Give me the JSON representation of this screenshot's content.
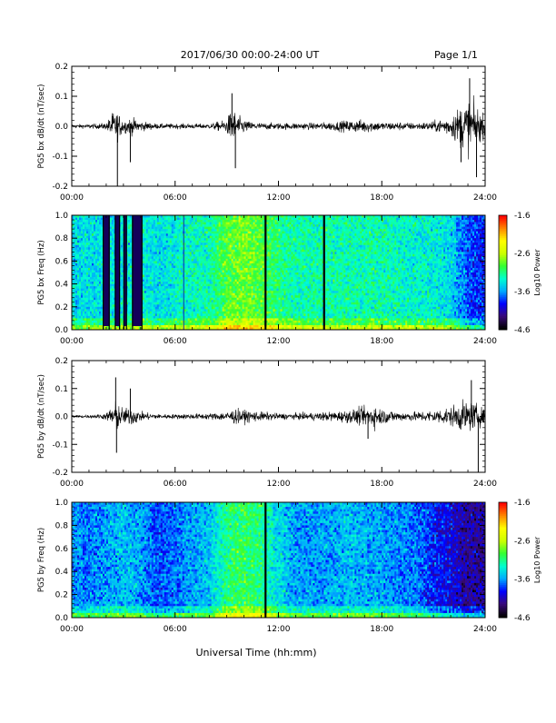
{
  "header": {
    "date_range": "2017/06/30  00:00-24:00 UT",
    "page": "Page 1/1"
  },
  "footer": {
    "xlabel": "Universal Time (hh:mm)"
  },
  "colors": {
    "trace": "#000000",
    "frame": "#000000",
    "colormap": [
      "#000000",
      "#3a0a7a",
      "#0000ff",
      "#00aaff",
      "#00ffd0",
      "#33ff33",
      "#ccff00",
      "#ffff00",
      "#ff8800",
      "#ff0000"
    ]
  },
  "chart_data": [
    {
      "type": "line",
      "ylabel": "PG5 bx dB/dt (nT/sec)",
      "x_ticks": [
        "00:00",
        "06:00",
        "12:00",
        "18:00",
        "24:00"
      ],
      "y_ticks": [
        "0.2",
        "0.1",
        "0.0",
        "-0.1",
        "-0.2"
      ],
      "xlim": [
        0,
        24
      ],
      "ylim": [
        -0.2,
        0.2
      ],
      "x_unit": "hours UT",
      "baseline": 0.0,
      "envelope_x": [
        0,
        1,
        2,
        2.4,
        2.6,
        3.0,
        3.5,
        4.0,
        5,
        6,
        8,
        9,
        9.3,
        9.7,
        10.2,
        11,
        12,
        13,
        14,
        15,
        16,
        17,
        18,
        19,
        20,
        21,
        22,
        22.5,
        23,
        23.5,
        24
      ],
      "envelope_y": [
        0.012,
        0.012,
        0.02,
        0.09,
        0.09,
        0.04,
        0.05,
        0.03,
        0.015,
        0.015,
        0.015,
        0.04,
        0.11,
        0.06,
        0.03,
        0.02,
        0.02,
        0.02,
        0.02,
        0.025,
        0.035,
        0.04,
        0.025,
        0.025,
        0.02,
        0.03,
        0.06,
        0.12,
        0.16,
        0.12,
        0.06
      ],
      "spikes": [
        {
          "x": 2.65,
          "y": -0.2
        },
        {
          "x": 3.4,
          "y": -0.12
        },
        {
          "x": 9.3,
          "y": 0.11
        },
        {
          "x": 9.5,
          "y": -0.14
        },
        {
          "x": 22.6,
          "y": -0.12
        },
        {
          "x": 23.1,
          "y": 0.16
        },
        {
          "x": 23.5,
          "y": -0.17
        }
      ]
    },
    {
      "type": "heatmap",
      "ylabel": "PG5 bx Freq (Hz)",
      "x_ticks": [
        "00:00",
        "06:00",
        "12:00",
        "18:00",
        "24:00"
      ],
      "y_ticks": [
        "1.0",
        "0.8",
        "0.6",
        "0.4",
        "0.2",
        "0.0"
      ],
      "xlim": [
        0,
        24
      ],
      "ylim": [
        0,
        1
      ],
      "colorbar": {
        "label": "Log10 Power",
        "ticks": [
          "-1.6",
          "-2.6",
          "-3.6",
          "-4.6"
        ],
        "range": [
          -4.6,
          -1.6
        ]
      },
      "level_profile_x": [
        0,
        2,
        4,
        5,
        6,
        8,
        9,
        10,
        11,
        12,
        13,
        15,
        18,
        20,
        21,
        22,
        23,
        24
      ],
      "level_profile": [
        -3.4,
        -3.4,
        -3.3,
        -3.4,
        -3.3,
        -3.2,
        -2.9,
        -2.8,
        -2.9,
        -3.1,
        -3.2,
        -3.2,
        -3.2,
        -3.3,
        -3.3,
        -3.4,
        -3.8,
        -3.9
      ],
      "data_gaps_hours": [
        [
          1.8,
          2.2
        ],
        [
          2.5,
          2.8
        ],
        [
          3.0,
          3.2
        ],
        [
          3.5,
          4.1
        ],
        [
          11.2,
          11.3
        ],
        [
          14.6,
          14.7
        ]
      ],
      "thin_gaps_hours": [
        6.5
      ]
    },
    {
      "type": "line",
      "ylabel": "PG5 by dB/dt (nT/sec)",
      "x_ticks": [
        "00:00",
        "06:00",
        "12:00",
        "18:00",
        "24:00"
      ],
      "y_ticks": [
        "0.2",
        "0.1",
        "0.0",
        "-0.1",
        "-0.2"
      ],
      "xlim": [
        0,
        24
      ],
      "ylim": [
        -0.2,
        0.2
      ],
      "x_unit": "hours UT",
      "baseline": 0.0,
      "envelope_x": [
        0,
        1,
        2,
        2.4,
        2.6,
        3.0,
        3.5,
        4.0,
        5,
        6,
        8,
        9,
        9.5,
        10,
        11,
        12,
        13,
        14,
        15,
        16,
        17,
        17.5,
        18,
        19,
        20,
        21,
        22,
        22.5,
        23,
        23.5,
        24
      ],
      "envelope_y": [
        0.01,
        0.01,
        0.02,
        0.08,
        0.1,
        0.05,
        0.06,
        0.03,
        0.015,
        0.015,
        0.02,
        0.03,
        0.05,
        0.04,
        0.03,
        0.02,
        0.02,
        0.025,
        0.03,
        0.04,
        0.06,
        0.08,
        0.05,
        0.03,
        0.03,
        0.04,
        0.06,
        0.09,
        0.1,
        0.08,
        0.04
      ],
      "spikes": [
        {
          "x": 2.55,
          "y": 0.14
        },
        {
          "x": 2.6,
          "y": -0.13
        },
        {
          "x": 3.4,
          "y": 0.1
        },
        {
          "x": 17.2,
          "y": -0.08
        },
        {
          "x": 23.2,
          "y": 0.13
        },
        {
          "x": 23.6,
          "y": -0.2
        }
      ]
    },
    {
      "type": "heatmap",
      "ylabel": "PG5 by Freq (Hz)",
      "x_ticks": [
        "00:00",
        "06:00",
        "12:00",
        "18:00",
        "24:00"
      ],
      "y_ticks": [
        "1.0",
        "0.8",
        "0.6",
        "0.4",
        "0.2",
        "0.0"
      ],
      "xlim": [
        0,
        24
      ],
      "ylim": [
        0,
        1
      ],
      "colorbar": {
        "label": "Log10 Power",
        "ticks": [
          "-1.6",
          "-2.6",
          "-3.6",
          "-4.6"
        ],
        "range": [
          -4.6,
          -1.6
        ]
      },
      "level_profile_x": [
        0,
        1,
        2,
        3,
        4,
        5,
        6,
        7,
        8,
        9,
        10,
        11,
        12,
        13,
        14,
        15,
        16,
        18,
        20,
        21,
        22,
        23,
        24
      ],
      "level_profile": [
        -3.6,
        -3.7,
        -3.6,
        -3.5,
        -3.6,
        -3.8,
        -3.7,
        -3.6,
        -3.5,
        -3.1,
        -3.0,
        -3.1,
        -3.4,
        -3.6,
        -3.6,
        -3.6,
        -3.5,
        -3.6,
        -3.7,
        -3.9,
        -4.0,
        -4.2,
        -4.2
      ],
      "data_gaps_hours": [
        [
          11.2,
          11.3
        ]
      ],
      "thin_gaps_hours": []
    }
  ]
}
